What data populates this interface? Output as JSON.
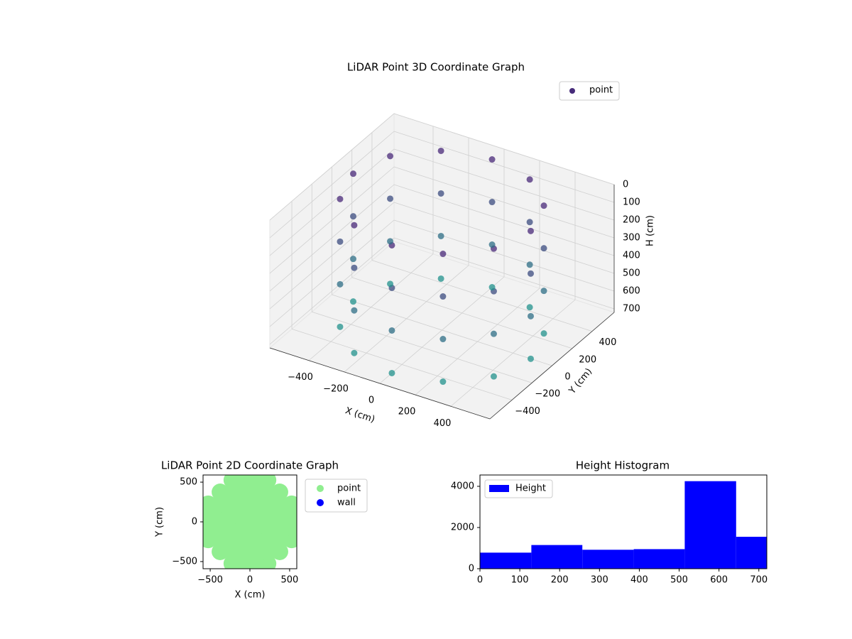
{
  "chart_data": [
    {
      "type": "scatter3d",
      "title": "LiDAR Point 3D Coordinate Graph",
      "xlabel": "X (cm)",
      "ylabel": "Y (cm)",
      "zlabel": "H (cm)",
      "xlim": [
        -620,
        620
      ],
      "ylim": [
        -620,
        620
      ],
      "zlim": [
        0,
        720
      ],
      "z_inverted": true,
      "xticks": [
        {
          "value": -400,
          "label": "−400"
        },
        {
          "value": -200,
          "label": "−200"
        },
        0,
        200,
        400
      ],
      "yticks": [
        {
          "value": -400,
          "label": "−400"
        },
        {
          "value": -200,
          "label": "−200"
        },
        0,
        200,
        400
      ],
      "zticks": [
        0,
        100,
        200,
        300,
        400,
        500,
        600,
        700
      ],
      "grid": true,
      "legend": "upper right",
      "series": [
        {
          "name": "point",
          "color": "#472c7a",
          "colormap": [
            "#482878",
            "#21918c"
          ],
          "x": [
            500,
            433,
            250,
            0,
            -250,
            -433,
            -500,
            -433,
            -250,
            0,
            250,
            433,
            500,
            433,
            250,
            0,
            -250,
            -433,
            -500,
            -433,
            -250,
            0,
            250,
            433,
            500,
            433,
            250,
            0,
            -250,
            -433,
            -500,
            -433,
            -250,
            0,
            250,
            433,
            500,
            433,
            250,
            0,
            -250,
            -433,
            -500,
            -433,
            -250,
            0,
            250,
            433
          ],
          "y": [
            0,
            250,
            433,
            500,
            433,
            250,
            0,
            -250,
            -433,
            -500,
            -433,
            -250,
            0,
            250,
            433,
            500,
            433,
            250,
            0,
            -250,
            -433,
            -500,
            -433,
            -250,
            0,
            250,
            433,
            500,
            433,
            250,
            0,
            -250,
            -433,
            -500,
            -433,
            -250,
            0,
            250,
            433,
            500,
            433,
            250,
            0,
            -250,
            -433,
            -500,
            -433,
            -250
          ],
          "z": [
            0,
            0,
            0,
            0,
            0,
            0,
            0,
            0,
            0,
            0,
            0,
            0,
            240,
            240,
            240,
            240,
            240,
            240,
            240,
            240,
            240,
            240,
            240,
            240,
            480,
            480,
            480,
            480,
            480,
            480,
            480,
            480,
            480,
            480,
            480,
            480,
            720,
            720,
            720,
            720,
            720,
            720,
            720,
            720,
            720,
            720,
            720,
            720
          ]
        }
      ]
    },
    {
      "type": "scatter",
      "title": "LiDAR Point 2D Coordinate Graph",
      "xlabel": "X (cm)",
      "ylabel": "Y (cm)",
      "xlim": [
        -590,
        590
      ],
      "ylim": [
        -590,
        590
      ],
      "xticks": [
        {
          "value": -500,
          "label": "−500"
        },
        0,
        500
      ],
      "yticks": [
        {
          "value": -500,
          "label": "−500"
        },
        0,
        500
      ],
      "legend": "outside upper right",
      "series": [
        {
          "name": "point",
          "color": "#90ee90",
          "x": [
            -525,
            -525,
            -525,
            -525,
            -375,
            -375,
            -375,
            -375,
            -375,
            -375,
            -225,
            -225,
            -225,
            -225,
            -225,
            -225,
            -225,
            -225,
            -75,
            -75,
            -75,
            -75,
            -75,
            -75,
            -75,
            -75,
            75,
            75,
            75,
            75,
            75,
            75,
            75,
            75,
            225,
            225,
            225,
            225,
            225,
            225,
            225,
            225,
            375,
            375,
            375,
            375,
            375,
            375,
            525,
            525,
            525,
            525
          ],
          "y": [
            -225,
            -75,
            75,
            225,
            -375,
            -225,
            -75,
            75,
            225,
            375,
            -525,
            -375,
            -225,
            -75,
            75,
            225,
            375,
            525,
            -525,
            -375,
            -225,
            -75,
            75,
            225,
            375,
            525,
            -525,
            -375,
            -225,
            -75,
            75,
            225,
            375,
            525,
            -525,
            -375,
            -225,
            -75,
            75,
            225,
            375,
            525,
            -375,
            -225,
            -75,
            75,
            225,
            375,
            -225,
            -75,
            75,
            225
          ]
        },
        {
          "name": "wall",
          "color": "#0000ff",
          "x": [],
          "y": []
        }
      ]
    },
    {
      "type": "histogram",
      "title": "Height Histogram",
      "name": "Height",
      "color": "#0000ff",
      "bins": [
        0,
        129,
        257,
        386,
        514,
        643,
        720
      ],
      "counts": [
        780,
        1150,
        920,
        950,
        4250,
        1550
      ],
      "xlim": [
        0,
        720
      ],
      "ylim": [
        0,
        4550
      ],
      "xticks": [
        0,
        100,
        200,
        300,
        400,
        500,
        600,
        700
      ],
      "yticks": [
        0,
        2000,
        4000
      ],
      "legend": "upper left"
    }
  ]
}
